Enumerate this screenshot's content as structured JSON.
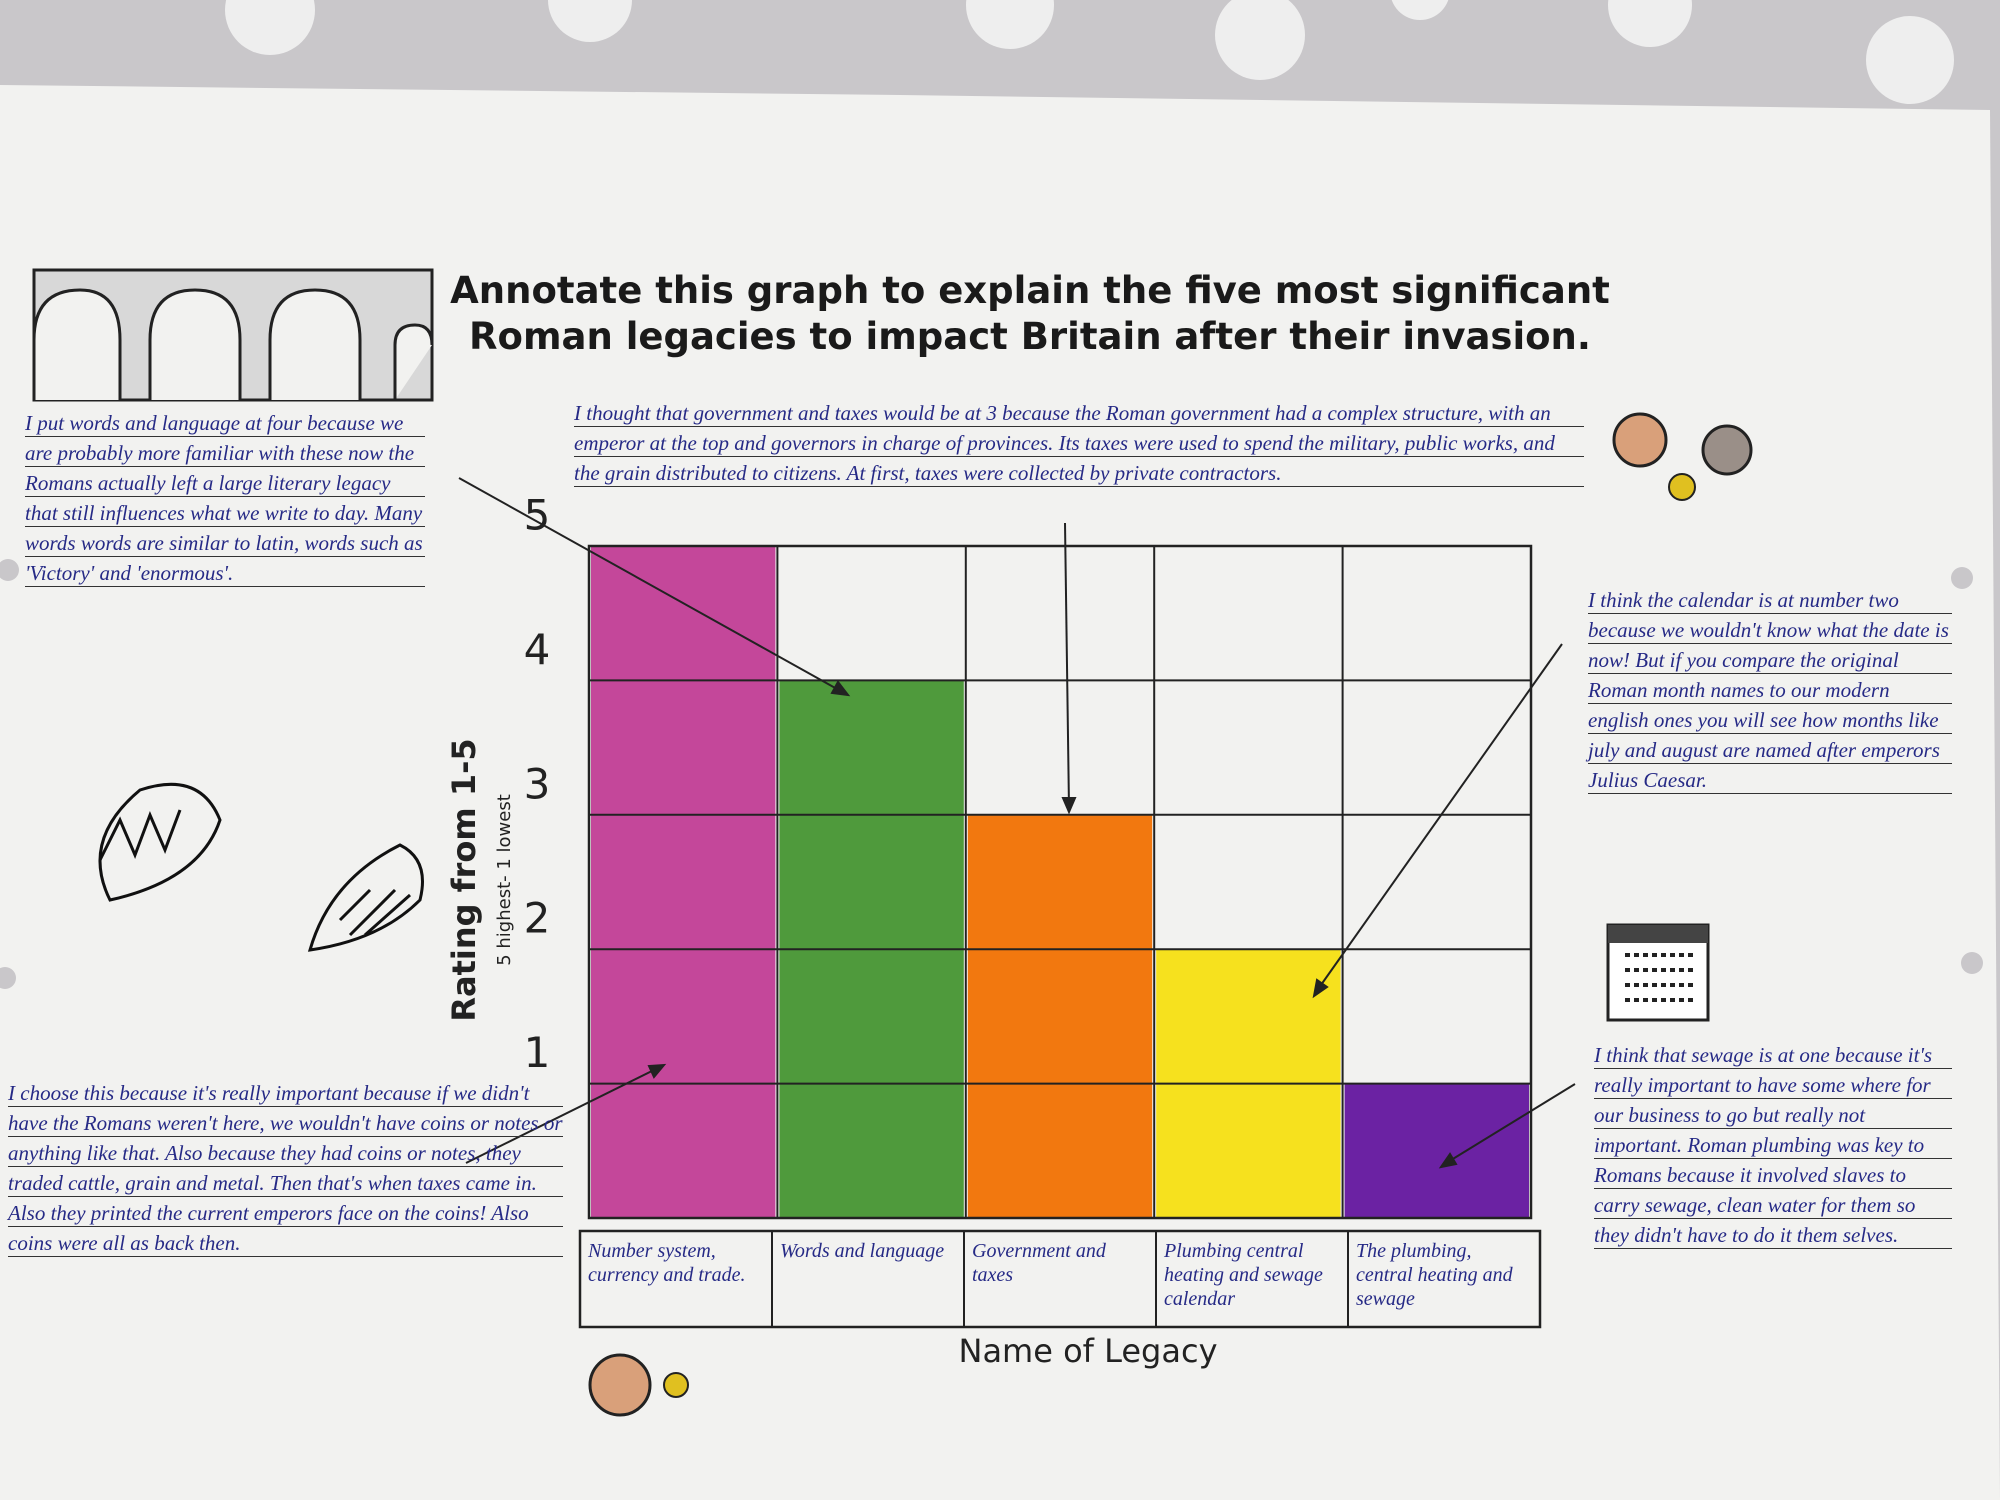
{
  "chart_data": {
    "type": "bar",
    "title": "Annotate this graph to explain the five most significant Roman legacies to impact Britain after their invasion.",
    "y_label": "Rating from 1-5",
    "y_sublabel": "5 highest- 1 lowest",
    "x_label": "Name of Legacy",
    "categories": [
      "Number system, currency and trade.",
      "Words and language",
      "Government and taxes",
      "Plumbing central heating and sewage calendar",
      "The plumbing, central heating and sewage"
    ],
    "values": [
      5,
      4,
      3,
      2,
      1
    ],
    "colors": [
      "#c4479a",
      "#4f9a3c",
      "#f2780f",
      "#f6e11e",
      "#6b22a3"
    ],
    "ylim": [
      0,
      5
    ],
    "yticks": [
      1,
      2,
      3,
      4,
      5
    ],
    "grid": true,
    "annotations": [
      "I put words and language at four because we are probably more familiar with these now the Romans actually left a large literary legacy that still influences what we write to day. Many words words are similar to latin, words such as 'Victory' and 'enormous'.",
      "I thought that government and taxes would be at 3 because the Roman government had a complex structure, with an emperor at the top and governors in charge of provinces. Its taxes were used to spend the military, public works, and the grain distributed to citizens. At first, taxes were collected by private contractors.",
      "I think the calendar is at number two because we wouldn't know what the date is now! But if you compare the original Roman month names to our modern english ones you will see how months like july and august are named after emperors Julius Caesar.",
      "I think that sewage is at one because it's really important to have some where for our business to go but really not important. Roman plumbing was key to Romans because it involved slaves to carry sewage, clean water for them so they didn't have to do it them selves.",
      "I choose this because it's really important because if we didn't have the Romans weren't here, we wouldn't have coins or notes or anything like that. Also because they had coins or notes, they traded cattle, grain and metal. Then that's when taxes came in. Also they printed the current emperors face on the coins! Also coins were all as back then."
    ]
  }
}
